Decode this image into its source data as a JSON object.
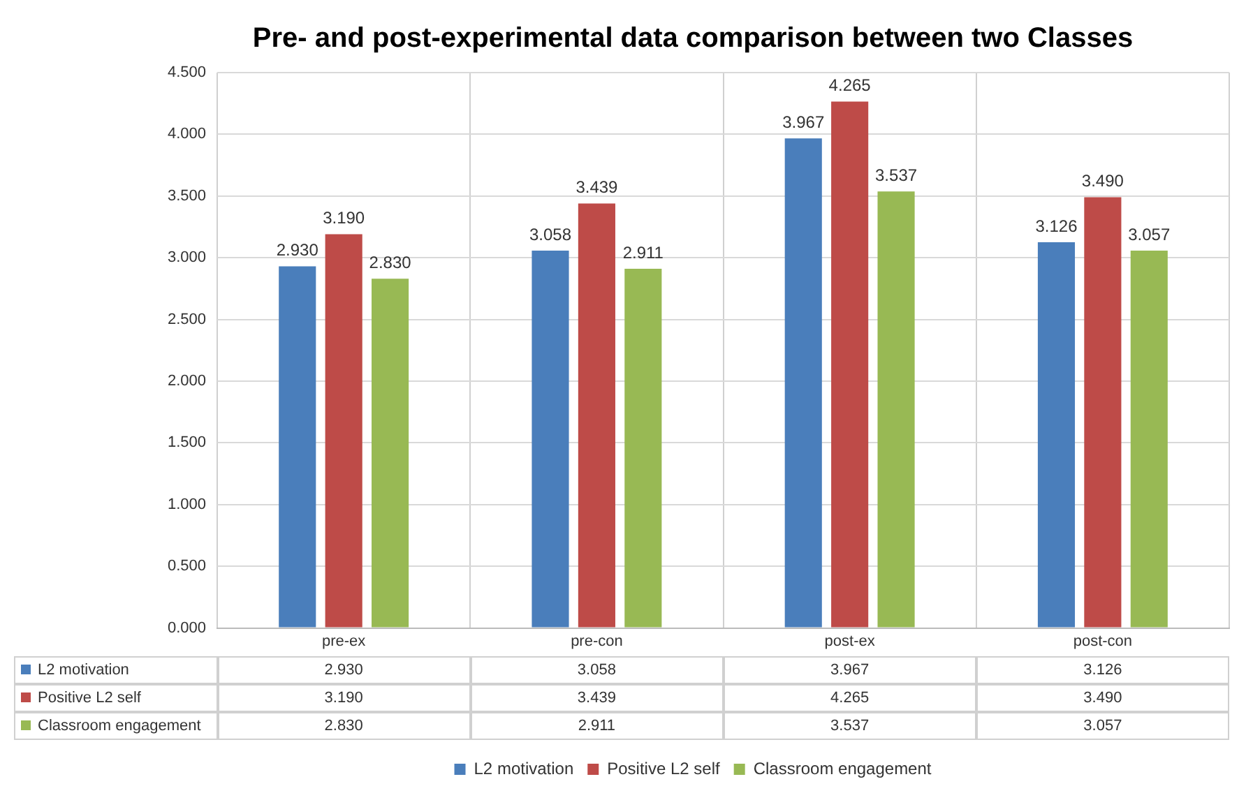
{
  "chart_data": {
    "type": "bar",
    "title": "Pre- and post-experimental data comparison between two Classes",
    "categories": [
      "pre-ex",
      "pre-con",
      "post-ex",
      "post-con"
    ],
    "series": [
      {
        "name": "L2 motivation",
        "color": "#4a7ebb",
        "values": [
          2.93,
          3.058,
          3.967,
          3.126
        ],
        "value_labels": [
          "2.930",
          "3.058",
          "3.967",
          "3.126"
        ]
      },
      {
        "name": "Positive L2 self",
        "color": "#be4b48",
        "values": [
          3.19,
          3.439,
          4.265,
          3.49
        ],
        "value_labels": [
          "3.190",
          "3.439",
          "4.265",
          "3.490"
        ]
      },
      {
        "name": "Classroom engagement",
        "color": "#98b954",
        "values": [
          2.83,
          2.911,
          3.537,
          3.057
        ],
        "value_labels": [
          "2.830",
          "2.911",
          "3.537",
          "3.057"
        ]
      }
    ],
    "ylim": [
      0,
      4.5
    ],
    "yticks": [
      {
        "value": 0,
        "label": "0.000"
      },
      {
        "value": 0.5,
        "label": "0.500"
      },
      {
        "value": 1,
        "label": "1.000"
      },
      {
        "value": 1.5,
        "label": "1.500"
      },
      {
        "value": 2,
        "label": "2.000"
      },
      {
        "value": 2.5,
        "label": "2.500"
      },
      {
        "value": 3,
        "label": "3.000"
      },
      {
        "value": 3.5,
        "label": "3.500"
      },
      {
        "value": 4,
        "label": "4.000"
      },
      {
        "value": 4.5,
        "label": "4.500"
      }
    ],
    "grid": true,
    "legend": "bottom"
  }
}
